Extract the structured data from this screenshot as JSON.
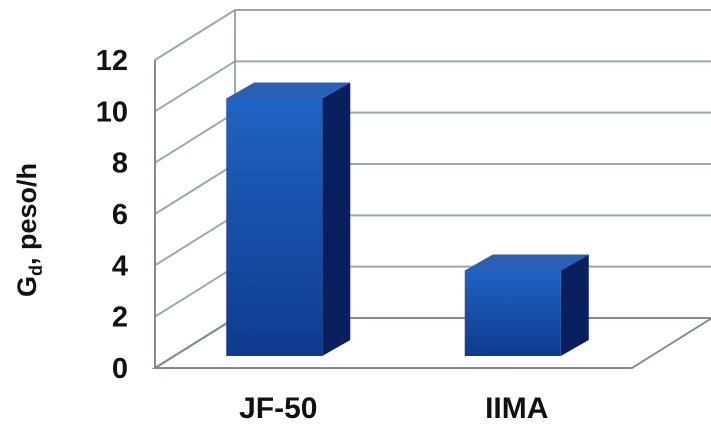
{
  "chart_data": {
    "type": "bar",
    "style": "3d-column",
    "categories": [
      "JF-50",
      "IIMA"
    ],
    "values": [
      10.5,
      3.8
    ],
    "title": "",
    "ylabel_main": "G",
    "ylabel_sub": "d",
    "ylabel_rest": ", peso/h",
    "xlabel": "",
    "ylim": [
      0,
      12
    ],
    "yticks": [
      0,
      2,
      4,
      6,
      8,
      10,
      12
    ],
    "grid": true,
    "legend": "none",
    "colors": {
      "bar_front_top": "#1f63c4",
      "bar_front_bottom": "#0f3a8f",
      "bar_side": "#0a1f5e",
      "bar_top": "#2b5fb6",
      "grid": "#9aa8b4",
      "axis": "#7f8c96"
    }
  }
}
